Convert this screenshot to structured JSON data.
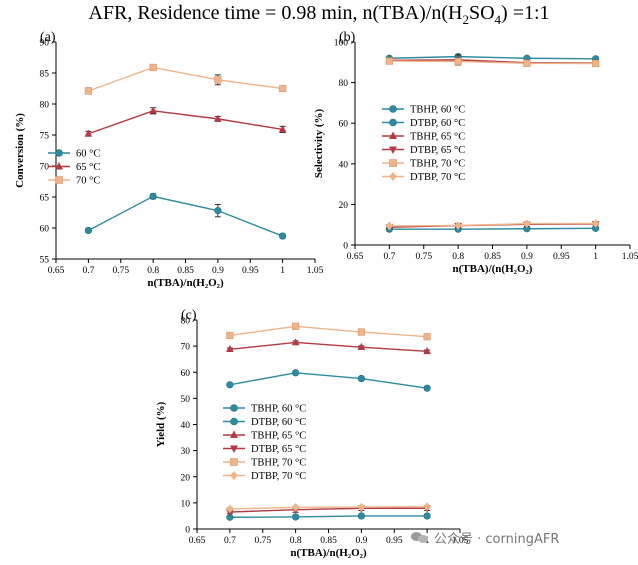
{
  "figure": {
    "title_prefix": "AFR, Residence time = 0.98 min, n(TBA)/n(H",
    "title_sub": "2",
    "title_mid": "SO",
    "title_sub2": "4",
    "title_suffix": ") =1:1",
    "watermark": "公众号 · corningAFR"
  },
  "colors": {
    "60C": "#2f8aa0",
    "65C": "#b23a42",
    "70C": "#f0b48a"
  },
  "chart_data": [
    {
      "id": "a",
      "type": "line",
      "panel_label": "(a)",
      "xlabel": "n(TBA)/n(H₂O₂)",
      "ylabel": "Conversion (%)",
      "xlim": [
        0.65,
        1.05
      ],
      "ylim": [
        55,
        90
      ],
      "xticks": [
        0.65,
        0.7,
        0.75,
        0.8,
        0.85,
        0.9,
        0.95,
        1,
        1.05
      ],
      "yticks": [
        55,
        60,
        65,
        70,
        75,
        80,
        85,
        90
      ],
      "x": [
        0.7,
        0.8,
        0.9,
        1.0
      ],
      "series": [
        {
          "name": "60 °C",
          "color": "#2f8aa0",
          "marker": "circle",
          "values": [
            59.6,
            65.1,
            62.8,
            58.7
          ],
          "errors": [
            0.3,
            0.4,
            1.0,
            0.3
          ]
        },
        {
          "name": "65 °C",
          "color": "#b23a42",
          "marker": "triangle-up",
          "values": [
            75.2,
            78.9,
            77.6,
            75.9
          ],
          "errors": [
            0.4,
            0.5,
            0.4,
            0.5
          ]
        },
        {
          "name": "70 °C",
          "color": "#f0b48a",
          "marker": "square",
          "values": [
            82.1,
            85.9,
            83.9,
            82.5
          ],
          "errors": [
            0.5,
            0.3,
            0.8,
            0.3
          ]
        }
      ]
    },
    {
      "id": "b",
      "type": "line",
      "panel_label": "(b)",
      "xlabel": "n(TBA)/(n(H₂O₂)",
      "ylabel": "Selectivity (%)",
      "xlim": [
        0.65,
        1.05
      ],
      "ylim": [
        0,
        100
      ],
      "xticks": [
        0.65,
        0.7,
        0.75,
        0.8,
        0.85,
        0.9,
        0.95,
        1,
        1.05
      ],
      "yticks": [
        0,
        20,
        40,
        60,
        80,
        100
      ],
      "x": [
        0.7,
        0.8,
        0.9,
        1.0
      ],
      "series": [
        {
          "name": "TBHP, 60 °C",
          "color": "#2f8aa0",
          "marker": "circle",
          "values": [
            92.0,
            92.8,
            92.0,
            91.7
          ],
          "errors": [
            0.5,
            0.5,
            0.5,
            0.5
          ]
        },
        {
          "name": "DTBP, 60 °C",
          "color": "#2f8aa0",
          "marker": "circle",
          "values": [
            7.8,
            7.8,
            8.0,
            8.2
          ],
          "errors": [
            0.3,
            0.3,
            0.3,
            0.3
          ]
        },
        {
          "name": "TBHP, 65 °C",
          "color": "#b23a42",
          "marker": "triangle-up",
          "values": [
            91.0,
            91.2,
            89.8,
            89.6
          ],
          "errors": [
            0.5,
            2.5,
            1.0,
            0.5
          ]
        },
        {
          "name": "DTBP, 65 °C",
          "color": "#b23a42",
          "marker": "triangle-down",
          "values": [
            8.8,
            9.5,
            10.2,
            10.4
          ],
          "errors": [
            0.5,
            1.0,
            1.0,
            0.5
          ]
        },
        {
          "name": "TBHP, 70 °C",
          "color": "#f0b48a",
          "marker": "square",
          "values": [
            90.6,
            90.4,
            89.5,
            89.4
          ],
          "errors": [
            0.5,
            0.5,
            0.5,
            0.5
          ]
        },
        {
          "name": "DTBP, 70 °C",
          "color": "#f0b48a",
          "marker": "diamond",
          "values": [
            9.4,
            9.6,
            10.5,
            10.6
          ],
          "errors": [
            0.4,
            0.4,
            0.4,
            0.4
          ]
        }
      ]
    },
    {
      "id": "c",
      "type": "line",
      "panel_label": "(c)",
      "xlabel": "n(TBA)/n(H₂O₂)",
      "ylabel": "Yield (%)",
      "xlim": [
        0.65,
        1.05
      ],
      "ylim": [
        0,
        80
      ],
      "xticks": [
        0.65,
        0.7,
        0.75,
        0.8,
        0.85,
        0.9,
        0.95,
        1,
        1.05
      ],
      "yticks": [
        0,
        10,
        20,
        30,
        40,
        50,
        60,
        70,
        80
      ],
      "x": [
        0.7,
        0.8,
        0.9,
        1.0
      ],
      "series": [
        {
          "name": "TBHP, 60 °C",
          "color": "#2f8aa0",
          "marker": "circle",
          "values": [
            55.2,
            59.8,
            57.6,
            53.9
          ],
          "errors": [
            0.4,
            0.4,
            0.6,
            0.5
          ]
        },
        {
          "name": "DTBP, 60 °C",
          "color": "#2f8aa0",
          "marker": "circle",
          "values": [
            4.5,
            4.6,
            5.0,
            5.0
          ],
          "errors": [
            0.3,
            0.3,
            0.3,
            0.3
          ]
        },
        {
          "name": "TBHP, 65 °C",
          "color": "#b23a42",
          "marker": "triangle-up",
          "values": [
            68.8,
            71.4,
            69.6,
            68.0
          ],
          "errors": [
            0.5,
            0.6,
            0.5,
            0.5
          ]
        },
        {
          "name": "DTBP, 65 °C",
          "color": "#b23a42",
          "marker": "triangle-down",
          "values": [
            6.5,
            7.4,
            7.9,
            7.9
          ],
          "errors": [
            0.5,
            1.0,
            0.8,
            0.8
          ]
        },
        {
          "name": "TBHP, 70 °C",
          "color": "#f0b48a",
          "marker": "square",
          "values": [
            74.1,
            77.6,
            75.4,
            73.6
          ],
          "errors": [
            0.5,
            1.0,
            0.6,
            0.5
          ]
        },
        {
          "name": "DTBP, 70 °C",
          "color": "#f0b48a",
          "marker": "diamond",
          "values": [
            7.7,
            8.3,
            8.4,
            8.6
          ],
          "errors": [
            0.4,
            0.4,
            0.4,
            0.4
          ]
        }
      ]
    }
  ]
}
